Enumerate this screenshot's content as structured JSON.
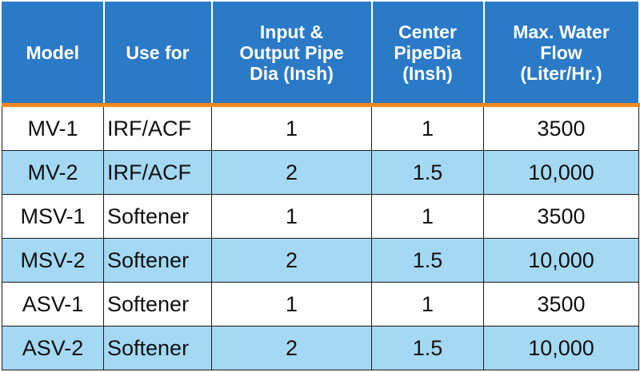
{
  "headers": [
    {
      "lines": [
        "Model"
      ]
    },
    {
      "lines": [
        "Use for"
      ]
    },
    {
      "lines": [
        "Input &",
        "Output Pipe",
        "Dia (Insh)"
      ]
    },
    {
      "lines": [
        "Center",
        "PipeDia",
        "(Insh)"
      ]
    },
    {
      "lines": [
        "Max. Water",
        "Flow",
        "(Liter/Hr.)"
      ]
    }
  ],
  "rows": [
    {
      "model": "MV-1",
      "use_for": "IRF/ACF",
      "input_output_dia": "1",
      "center_dia": "1",
      "max_flow": "3500"
    },
    {
      "model": "MV-2",
      "use_for": "IRF/ACF",
      "input_output_dia": "2",
      "center_dia": "1.5",
      "max_flow": "10,000"
    },
    {
      "model": "MSV-1",
      "use_for": "Softener",
      "input_output_dia": "1",
      "center_dia": "1",
      "max_flow": "3500"
    },
    {
      "model": "MSV-2",
      "use_for": "Softener",
      "input_output_dia": "2",
      "center_dia": "1.5",
      "max_flow": "10,000"
    },
    {
      "model": "ASV-1",
      "use_for": "Softener",
      "input_output_dia": "1",
      "center_dia": "1",
      "max_flow": "3500"
    },
    {
      "model": "ASV-2",
      "use_for": "Softener",
      "input_output_dia": "2",
      "center_dia": "1.5",
      "max_flow": "10,000"
    }
  ],
  "colors": {
    "header_bg": "#2b7ac7",
    "header_rule": "#f08a1c",
    "alt_row_bg": "#a5d8f3"
  }
}
